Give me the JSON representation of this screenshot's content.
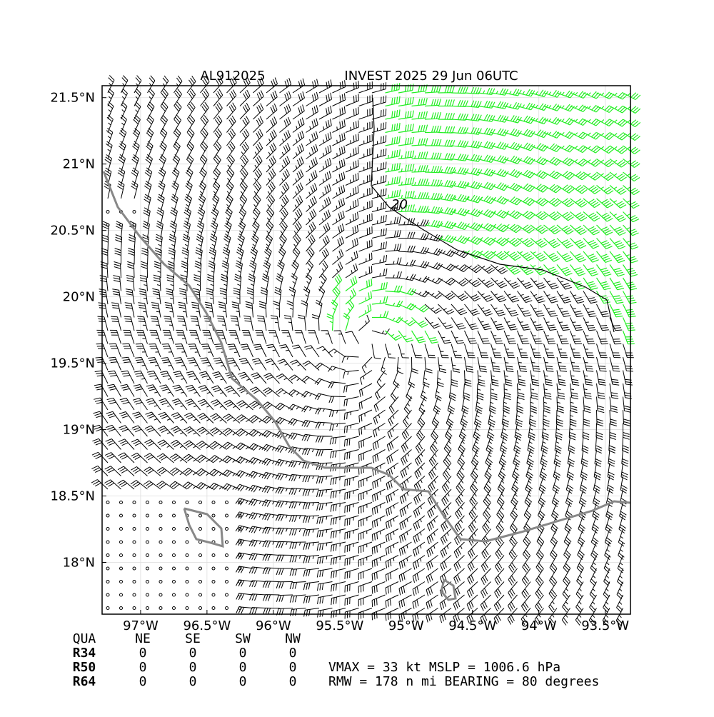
{
  "map": {
    "title_id": "AL912025",
    "title": "INVEST 2025 29 Jun 06UTC",
    "xlim": [
      -97.29,
      -93.31
    ],
    "ylim": [
      17.61,
      21.59
    ],
    "xticks": [
      {
        "value": -97,
        "label": "97°W"
      },
      {
        "value": -96.5,
        "label": "96.5°W"
      },
      {
        "value": -96,
        "label": "96°W"
      },
      {
        "value": -95.5,
        "label": "95.5°W"
      },
      {
        "value": -95,
        "label": "95°W"
      },
      {
        "value": -94.5,
        "label": "94.5°W"
      },
      {
        "value": -94,
        "label": "94°W"
      },
      {
        "value": -93.5,
        "label": "93.5°W"
      }
    ],
    "yticks": [
      {
        "value": 18,
        "label": "18°N"
      },
      {
        "value": 18.5,
        "label": "18.5°N"
      },
      {
        "value": 19,
        "label": "19°N"
      },
      {
        "value": 19.5,
        "label": "19.5°N"
      },
      {
        "value": 20,
        "label": "20°N"
      },
      {
        "value": 20.5,
        "label": "20.5°N"
      },
      {
        "value": 21,
        "label": "21°N"
      },
      {
        "value": 21.5,
        "label": "21.5°N"
      }
    ],
    "contour_label": "20",
    "table": {
      "header": [
        "QUA",
        "NE",
        "SE",
        "SW",
        "NW"
      ],
      "rows": [
        [
          "R34",
          0,
          0,
          0,
          0
        ],
        [
          "R50",
          0,
          0,
          0,
          0
        ],
        [
          "R64",
          0,
          0,
          0,
          0
        ]
      ]
    },
    "summary": [
      "VMAX =  33 kt MSLP = 1006.6 hPa",
      "RMW = 178 n mi BEARING =  80 degrees"
    ]
  }
}
